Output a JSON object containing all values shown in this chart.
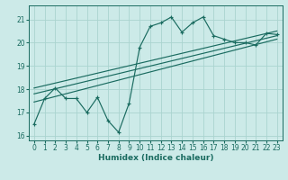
{
  "xlabel": "Humidex (Indice chaleur)",
  "bg_color": "#cceae8",
  "line_color": "#1a6b60",
  "grid_color": "#aad4d0",
  "ylim": [
    15.8,
    21.6
  ],
  "xlim": [
    -0.5,
    23.5
  ],
  "yticks": [
    16,
    17,
    18,
    19,
    20,
    21
  ],
  "xticks": [
    0,
    1,
    2,
    3,
    4,
    5,
    6,
    7,
    8,
    9,
    10,
    11,
    12,
    13,
    14,
    15,
    16,
    17,
    18,
    19,
    20,
    21,
    22,
    23
  ],
  "main_x": [
    0,
    1,
    2,
    3,
    4,
    5,
    6,
    7,
    8,
    9,
    10,
    11,
    12,
    13,
    14,
    15,
    16,
    17,
    18,
    19,
    20,
    21,
    22,
    23
  ],
  "main_y": [
    16.5,
    17.6,
    18.05,
    17.6,
    17.6,
    17.0,
    17.65,
    16.65,
    16.15,
    17.4,
    19.8,
    20.7,
    20.85,
    21.1,
    20.45,
    20.85,
    21.1,
    20.3,
    20.15,
    20.0,
    20.0,
    19.9,
    20.4,
    20.35
  ],
  "lines": [
    {
      "x0": 0,
      "y0": 17.45,
      "x1": 23,
      "y1": 20.15
    },
    {
      "x0": 0,
      "y0": 17.8,
      "x1": 23,
      "y1": 20.3
    },
    {
      "x0": 0,
      "y0": 18.05,
      "x1": 23,
      "y1": 20.5
    }
  ]
}
